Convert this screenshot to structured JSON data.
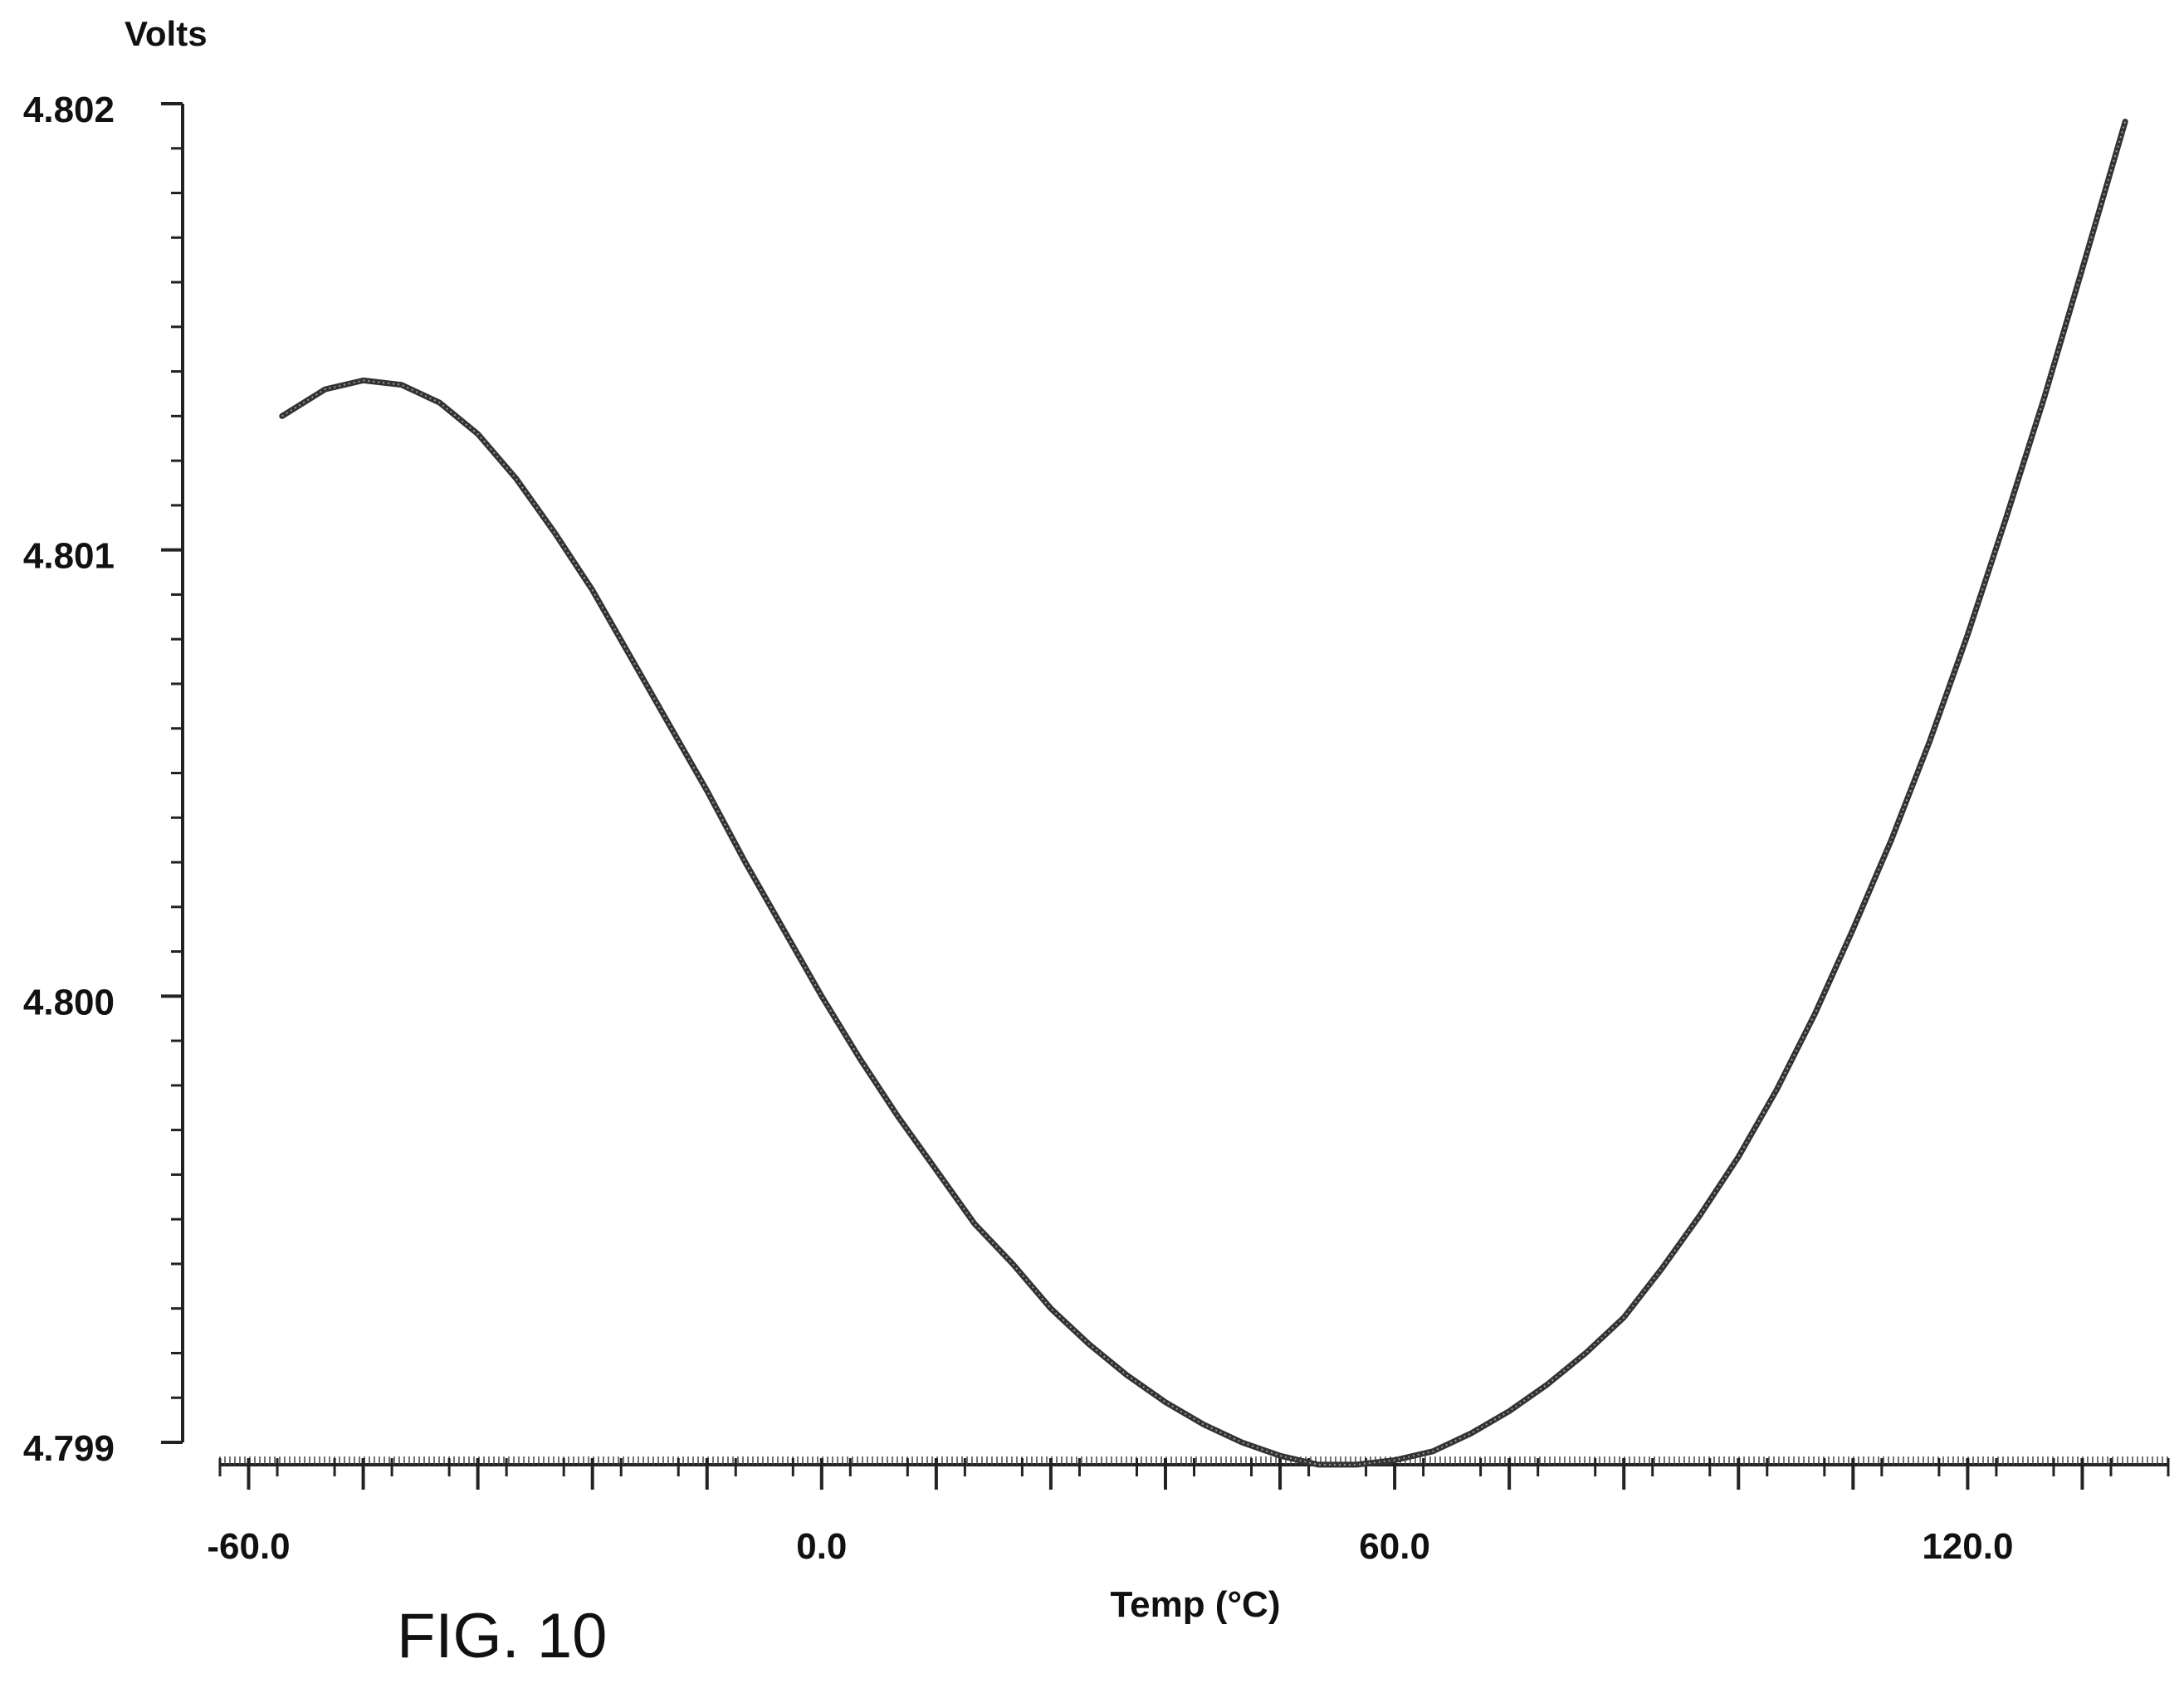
{
  "chart_data": {
    "type": "line",
    "title": "",
    "xlabel": "Temp (°C)",
    "ylabel": "Volts",
    "xlim": [
      -63,
      141
    ],
    "ylim": [
      4.799,
      4.802
    ],
    "x_ticks": [
      -60,
      0,
      60,
      120
    ],
    "x_tick_labels": [
      "-60.0",
      "0.0",
      "60.0",
      "120.0"
    ],
    "y_ticks": [
      4.799,
      4.8,
      4.801,
      4.802
    ],
    "y_tick_labels": [
      "4.799",
      "4.800",
      "4.801",
      "4.802"
    ],
    "grid": false,
    "legend": "none",
    "series": [
      {
        "x": [
          -56.5,
          -52,
          -48,
          -44,
          -40,
          -36,
          -32,
          -28,
          -24,
          -20,
          -16,
          -12,
          -8,
          -4,
          0,
          4,
          8,
          12,
          16,
          20,
          24,
          28,
          32,
          36,
          40,
          44,
          48,
          52,
          56,
          60,
          64,
          68,
          72,
          76,
          80,
          84,
          88,
          92,
          96,
          100,
          104,
          108,
          112,
          116,
          120,
          124,
          128,
          132,
          136.5
        ],
        "values": [
          4.8013,
          4.80136,
          4.80138,
          4.80137,
          4.80133,
          4.80126,
          4.80116,
          4.80104,
          4.80091,
          4.80076,
          4.80061,
          4.80046,
          4.8003,
          4.80015,
          4.8,
          4.79986,
          4.79973,
          4.79961,
          4.79949,
          4.7994,
          4.7993,
          4.79922,
          4.79915,
          4.79909,
          4.79904,
          4.799,
          4.79897,
          4.79895,
          4.79895,
          4.79896,
          4.79898,
          4.79902,
          4.79907,
          4.79913,
          4.7992,
          4.79928,
          4.79939,
          4.79951,
          4.79964,
          4.79979,
          4.79996,
          4.80015,
          4.80035,
          4.80057,
          4.80081,
          4.80107,
          4.80134,
          4.80163,
          4.80196
        ]
      }
    ]
  },
  "figure_label": "FIG. 10"
}
